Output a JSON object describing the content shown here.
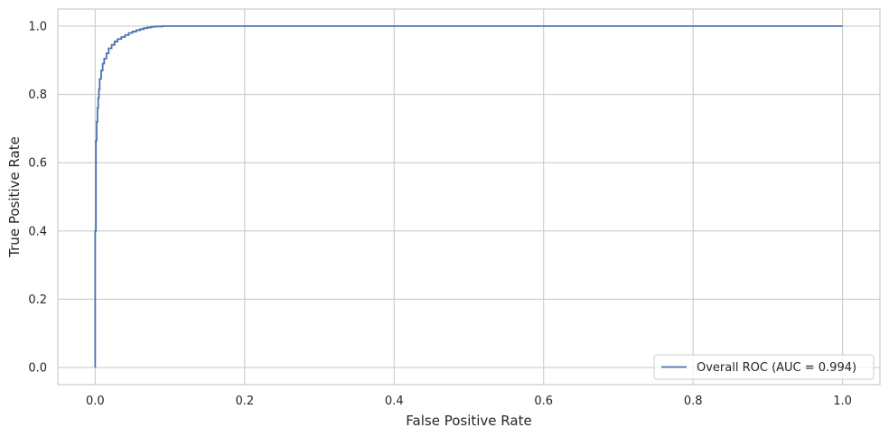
{
  "chart_data": {
    "type": "line",
    "title": "",
    "xlabel": "False Positive Rate",
    "ylabel": "True Positive Rate",
    "xlim": [
      -0.05,
      1.05
    ],
    "ylim": [
      -0.05,
      1.05
    ],
    "xticks": [
      0.0,
      0.2,
      0.4,
      0.6,
      0.8,
      1.0
    ],
    "xtick_labels": [
      "0.0",
      "0.2",
      "0.4",
      "0.6",
      "0.8",
      "1.0"
    ],
    "yticks": [
      0.0,
      0.2,
      0.4,
      0.6,
      0.8,
      1.0
    ],
    "ytick_labels": [
      "0.0",
      "0.2",
      "0.4",
      "0.6",
      "0.8",
      "1.0"
    ],
    "grid": true,
    "legend_position": "bottom-right",
    "series": [
      {
        "name": "Overall ROC (AUC = 0.994)",
        "color": "#4c72b0",
        "x": [
          0.0,
          0.0,
          0.001,
          0.001,
          0.002,
          0.003,
          0.004,
          0.005,
          0.006,
          0.008,
          0.01,
          0.012,
          0.015,
          0.018,
          0.022,
          0.026,
          0.03,
          0.035,
          0.04,
          0.045,
          0.05,
          0.055,
          0.06,
          0.065,
          0.07,
          0.075,
          0.08,
          0.09,
          0.1,
          0.15,
          0.3,
          0.5,
          0.7,
          0.9,
          1.0
        ],
        "y": [
          0.0,
          0.2,
          0.4,
          0.585,
          0.665,
          0.72,
          0.76,
          0.79,
          0.815,
          0.845,
          0.87,
          0.89,
          0.905,
          0.92,
          0.935,
          0.945,
          0.955,
          0.962,
          0.968,
          0.974,
          0.98,
          0.984,
          0.988,
          0.991,
          0.994,
          0.996,
          0.998,
          0.999,
          1.0,
          1.0,
          1.0,
          1.0,
          1.0,
          1.0,
          1.0
        ]
      }
    ]
  }
}
